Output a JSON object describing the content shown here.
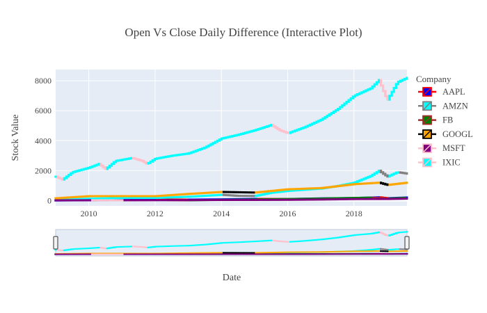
{
  "chart_data": {
    "type": "candlestick",
    "title": "Open Vs Close Daily Difference (Interactive Plot)",
    "xlabel": "Date",
    "ylabel": "Stock Value",
    "x_range": [
      2009.0,
      2019.6
    ],
    "ylim": [
      -350,
      8750
    ],
    "y_ticks": [
      0,
      2000,
      4000,
      6000,
      8000
    ],
    "y_tick_labels": [
      "0",
      "2000",
      "4000",
      "6000",
      "8000"
    ],
    "x_ticks": [
      2010,
      2012,
      2014,
      2016,
      2018
    ],
    "x_tick_labels": [
      "2010",
      "2012",
      "2014",
      "2016",
      "2018"
    ],
    "grid": true,
    "legend_title": "Company",
    "legend_position": "right",
    "range_slider": true,
    "series": [
      {
        "name": "AAPL",
        "increasing_color": "#0000ff",
        "decreasing_color": "#ff0000",
        "x": [
          2009.0,
          2010.0,
          2011.0,
          2012.0,
          2013.0,
          2014.0,
          2015.0,
          2016.0,
          2017.0,
          2018.0,
          2018.75,
          2019.0,
          2019.6
        ],
        "y": [
          12,
          30,
          45,
          80,
          65,
          85,
          115,
          105,
          150,
          175,
          220,
          160,
          210
        ]
      },
      {
        "name": "AMZN",
        "increasing_color": "#00ffff",
        "decreasing_color": "#808080",
        "x": [
          2009.0,
          2010.0,
          2011.0,
          2012.0,
          2013.0,
          2014.0,
          2014.5,
          2015.0,
          2015.5,
          2016.0,
          2017.0,
          2017.5,
          2018.0,
          2018.5,
          2018.75,
          2019.0,
          2019.3,
          2019.6
        ],
        "y": [
          55,
          130,
          180,
          180,
          260,
          390,
          320,
          310,
          530,
          650,
          810,
          980,
          1200,
          1650,
          2000,
          1600,
          1900,
          1800
        ]
      },
      {
        "name": "FB",
        "increasing_color": "#008000",
        "decreasing_color": "#a52a2a",
        "x": [
          2012.4,
          2013.0,
          2014.0,
          2015.0,
          2016.0,
          2017.0,
          2018.0,
          2018.5,
          2019.0,
          2019.6
        ],
        "y": [
          38,
          26,
          55,
          80,
          110,
          140,
          180,
          200,
          140,
          190
        ]
      },
      {
        "name": "GOOGL",
        "increasing_color": "#ffa500",
        "decreasing_color": "#000000",
        "x": [
          2009.0,
          2010.0,
          2011.0,
          2012.0,
          2013.0,
          2014.0,
          2015.0,
          2015.5,
          2016.0,
          2017.0,
          2018.0,
          2018.75,
          2019.0,
          2019.6
        ],
        "y": [
          160,
          300,
          300,
          300,
          450,
          580,
          540,
          650,
          760,
          840,
          1100,
          1200,
          1050,
          1200
        ]
      },
      {
        "name": "MSFT",
        "increasing_color": "#800080",
        "decreasing_color": "#ffc0cb",
        "x": [
          2009.0,
          2010.0,
          2011.0,
          2012.0,
          2013.0,
          2014.0,
          2015.0,
          2016.0,
          2017.0,
          2018.0,
          2019.0,
          2019.6
        ],
        "y": [
          20,
          28,
          25,
          30,
          35,
          45,
          46,
          55,
          75,
          105,
          110,
          135
        ]
      },
      {
        "name": "IXIC",
        "increasing_color": "#00ffff",
        "decreasing_color": "#ffc0cb",
        "x": [
          2009.0,
          2009.2,
          2009.5,
          2010.0,
          2010.3,
          2010.5,
          2010.8,
          2011.3,
          2011.6,
          2011.75,
          2012.0,
          2012.5,
          2013.0,
          2013.5,
          2014.0,
          2014.5,
          2015.0,
          2015.5,
          2015.75,
          2016.0,
          2016.5,
          2017.0,
          2017.5,
          2018.0,
          2018.3,
          2018.5,
          2018.75,
          2018.9,
          2019.0,
          2019.3,
          2019.6
        ],
        "y": [
          1600,
          1400,
          1900,
          2200,
          2450,
          2100,
          2650,
          2850,
          2650,
          2450,
          2800,
          3000,
          3150,
          3550,
          4150,
          4400,
          4700,
          5050,
          4700,
          4500,
          4900,
          5400,
          6100,
          7000,
          7300,
          7500,
          8050,
          7200,
          6700,
          7900,
          8200
        ]
      }
    ]
  }
}
